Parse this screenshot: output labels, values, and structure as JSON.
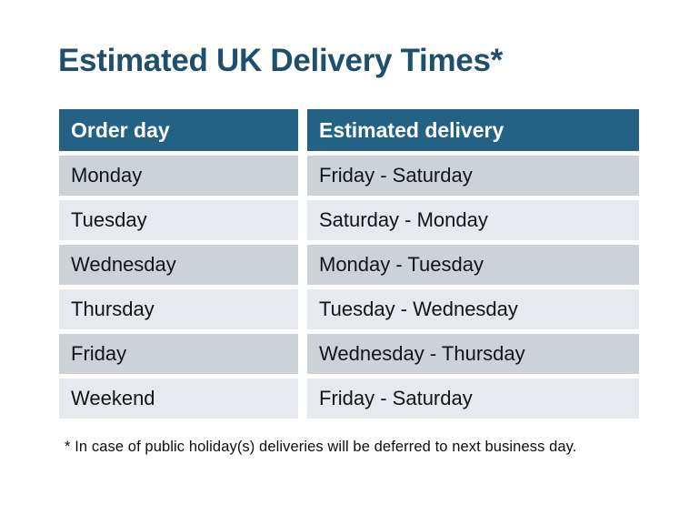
{
  "title": "Estimated UK Delivery Times*",
  "table": {
    "headers": [
      "Order day",
      "Estimated delivery"
    ],
    "rows": [
      [
        "Monday",
        "Friday - Saturday"
      ],
      [
        "Tuesday",
        "Saturday - Monday"
      ],
      [
        "Wednesday",
        "Monday - Tuesday"
      ],
      [
        "Thursday",
        "Tuesday - Wednesday"
      ],
      [
        "Friday",
        "Wednesday - Thursday"
      ],
      [
        "Weekend",
        "Friday - Saturday"
      ]
    ]
  },
  "footnote": "* In case of public holiday(s) deliveries will be deferred to next business day.",
  "colors": {
    "header_bg": "#236285",
    "row_odd": "#CDD2D9",
    "row_even": "#E6E9ED",
    "title": "#1E4F6C"
  }
}
